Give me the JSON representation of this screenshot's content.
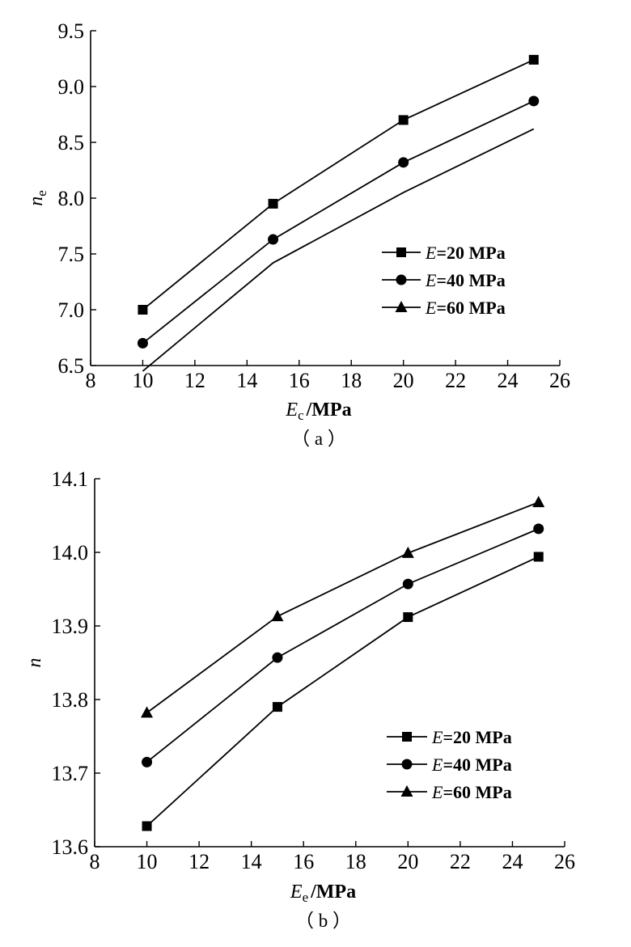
{
  "chart_data": [
    {
      "type": "line",
      "panel_label": "（ a ）",
      "x": [
        10,
        15,
        20,
        25
      ],
      "xlim": [
        8,
        26
      ],
      "ylim": [
        6.5,
        9.5
      ],
      "xticks": [
        "8",
        "10",
        "12",
        "14",
        "16",
        "18",
        "20",
        "22",
        "24",
        "26"
      ],
      "yticks": [
        "6.5",
        "7.0",
        "7.5",
        "8.0",
        "8.5",
        "9.0",
        "9.5"
      ],
      "xlabel": {
        "var": "E",
        "sub": "c",
        "unit": "/MPa"
      },
      "ylabel": {
        "var": "n",
        "sub": "e"
      },
      "legend_position": "center-right",
      "series": [
        {
          "name": "=20 MPa",
          "legend_var": "E",
          "marker": "square",
          "show_markers": true,
          "values": [
            7.0,
            7.95,
            8.7,
            9.24
          ]
        },
        {
          "name": "=40 MPa",
          "legend_var": "E",
          "marker": "circle",
          "show_markers": true,
          "values": [
            6.7,
            7.63,
            8.32,
            8.87
          ]
        },
        {
          "name": "=60 MPa",
          "legend_var": "E",
          "marker": "triangle",
          "show_markers": false,
          "values": [
            6.45,
            7.42,
            8.05,
            8.62
          ]
        }
      ]
    },
    {
      "type": "line",
      "panel_label": "（ b ）",
      "x": [
        10,
        15,
        20,
        25
      ],
      "xlim": [
        8,
        26
      ],
      "ylim": [
        13.6,
        14.1
      ],
      "xticks": [
        "8",
        "10",
        "12",
        "14",
        "16",
        "18",
        "20",
        "22",
        "24",
        "26"
      ],
      "yticks": [
        "13.6",
        "13.7",
        "13.8",
        "13.9",
        "14.0",
        "14.1"
      ],
      "xlabel": {
        "var": "E",
        "sub": "e",
        "unit": "/MPa"
      },
      "ylabel": {
        "var": "n",
        "sub": ""
      },
      "legend_position": "lower-right",
      "series": [
        {
          "name": "=20 MPa",
          "legend_var": "E",
          "marker": "square",
          "show_markers": true,
          "values": [
            13.628,
            13.79,
            13.912,
            13.994
          ]
        },
        {
          "name": "=40 MPa",
          "legend_var": "E",
          "marker": "circle",
          "show_markers": true,
          "values": [
            13.715,
            13.857,
            13.957,
            14.032
          ]
        },
        {
          "name": "=60 MPa",
          "legend_var": "E",
          "marker": "triangle",
          "show_markers": true,
          "values": [
            13.782,
            13.913,
            13.999,
            14.068
          ]
        }
      ]
    }
  ]
}
